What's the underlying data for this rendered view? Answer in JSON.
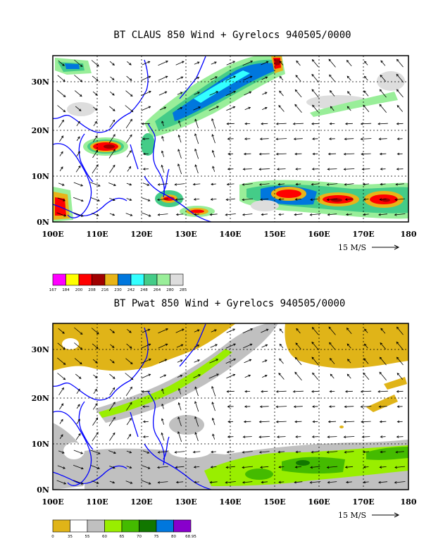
{
  "panels": [
    {
      "title": "BT CLAUS 850 Wind + Gyrelocs 940505/0000",
      "field": "claus"
    },
    {
      "title": "BT Pwat 850 Wind + Gyrelocs 940505/0000",
      "field": "pwat"
    }
  ],
  "axes": {
    "x_ticks": [
      "100E",
      "110E",
      "120E",
      "130E",
      "140E",
      "150E",
      "160E",
      "170E",
      "180"
    ],
    "y_ticks": [
      "0N",
      "10N",
      "20N",
      "30N"
    ]
  },
  "wind_scale_label": "15 M/S",
  "colorbars": {
    "claus": {
      "labels": [
        "167",
        "184",
        "200",
        "208",
        "216",
        "230",
        "242",
        "248",
        "264",
        "280",
        "285"
      ],
      "colors": [
        "#ff00ff",
        "#ffff00",
        "#ff0000",
        "#a00000",
        "#e8b418",
        "#0077dd",
        "#33ffff",
        "#44cc88",
        "#99ee99",
        "#dddddd"
      ]
    },
    "pwat": {
      "labels": [
        "0",
        "35",
        "55",
        "60",
        "65",
        "70",
        "75",
        "80",
        "68.95"
      ],
      "colors": [
        "#e0b418",
        "#ffffff",
        "#c0c0c0",
        "#99ee00",
        "#44bb00",
        "#117700",
        "#0077dd",
        "#8800cc"
      ]
    }
  },
  "colors": {
    "coastline": "#0000ff",
    "frame": "#000000"
  }
}
